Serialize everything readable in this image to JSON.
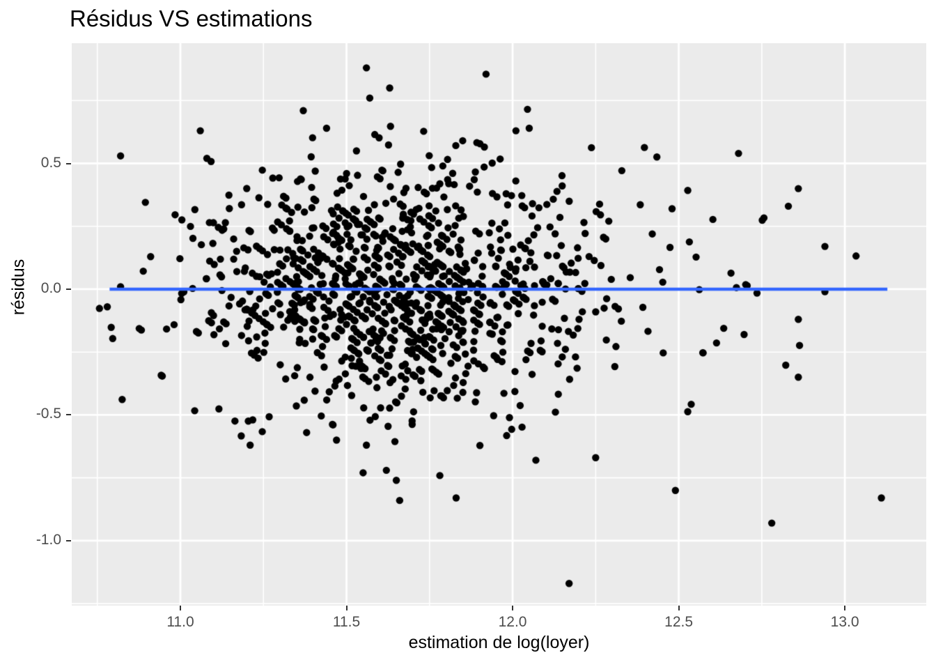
{
  "chart_data": {
    "type": "scatter",
    "title": "Résidus VS estimations",
    "xlabel": "estimation de log(loyer)",
    "ylabel": "résidus",
    "grid": "on",
    "legend": "none",
    "x_axis": {
      "lim": [
        10.673,
        13.245
      ],
      "ticks": [
        {
          "value": 11.0,
          "label": "11.0"
        },
        {
          "value": 11.5,
          "label": "11.5"
        },
        {
          "value": 12.0,
          "label": "12.0"
        },
        {
          "value": 12.5,
          "label": "12.5"
        },
        {
          "value": 13.0,
          "label": "13.0"
        }
      ],
      "minor": [
        10.75,
        11.25,
        11.75,
        12.25,
        12.75
      ]
    },
    "y_axis": {
      "lim": [
        -1.258,
        0.978
      ],
      "ticks": [
        {
          "value": 0.5,
          "label": "0.5"
        },
        {
          "value": 0.0,
          "label": "0.0"
        },
        {
          "value": -0.5,
          "label": "-0.5"
        },
        {
          "value": -1.0,
          "label": "-1.0"
        }
      ],
      "minor": [
        0.75,
        0.25,
        -0.25,
        -0.75,
        -1.25
      ]
    },
    "colors": {
      "background": "#FFFFFF",
      "panel_bg": "#EBEBEB",
      "grid": "#FFFFFF",
      "tick_label": "#4D4D4D",
      "tick_mark": "#333333",
      "text": "#000000",
      "point": "#000000",
      "line": "#3366FF"
    },
    "zero_line": {
      "y": 0,
      "x_start": 10.787,
      "x_end": 13.128,
      "stroke_width": 4.5
    },
    "points_style": {
      "radius": 5.2
    },
    "notable_points": [
      [
        10.78,
        -0.07
      ],
      [
        10.82,
        0.01
      ],
      [
        10.82,
        0.53
      ],
      [
        11.06,
        0.63
      ],
      [
        11.37,
        0.71
      ],
      [
        11.44,
        0.64
      ],
      [
        11.56,
        0.88
      ],
      [
        11.57,
        0.76
      ],
      [
        11.63,
        0.8
      ],
      [
        11.92,
        0.855
      ],
      [
        12.01,
        0.63
      ],
      [
        12.05,
        0.64
      ],
      [
        12.68,
        0.54
      ],
      [
        12.83,
        0.33
      ],
      [
        12.86,
        0.4
      ],
      [
        12.94,
        0.17
      ],
      [
        12.86,
        -0.12
      ],
      [
        12.94,
        -0.01
      ],
      [
        12.86,
        -0.35
      ],
      [
        13.11,
        -0.83
      ],
      [
        12.78,
        -0.93
      ],
      [
        12.49,
        -0.8
      ],
      [
        12.17,
        -1.17
      ],
      [
        12.25,
        -0.67
      ],
      [
        11.66,
        -0.84
      ],
      [
        11.83,
        -0.83
      ],
      [
        11.65,
        -0.76
      ],
      [
        11.55,
        -0.73
      ],
      [
        11.21,
        -0.62
      ],
      [
        11.38,
        -0.57
      ],
      [
        11.62,
        -0.72
      ],
      [
        12.07,
        -0.68
      ],
      [
        11.56,
        -0.62
      ],
      [
        11.47,
        -0.6
      ]
    ],
    "cloud": {
      "count": 1170,
      "seed": 7,
      "x_components": [
        {
          "weight": 0.82,
          "mean": 11.62,
          "sd": 0.27
        },
        {
          "weight": 0.18,
          "mean": 11.95,
          "sd": 0.42
        }
      ],
      "residual_sd": 0.24,
      "value_step": 0.04,
      "value_snap_prob": 0.8,
      "x_range": [
        10.75,
        13.16
      ],
      "y_range": [
        -0.9,
        0.92
      ]
    }
  }
}
